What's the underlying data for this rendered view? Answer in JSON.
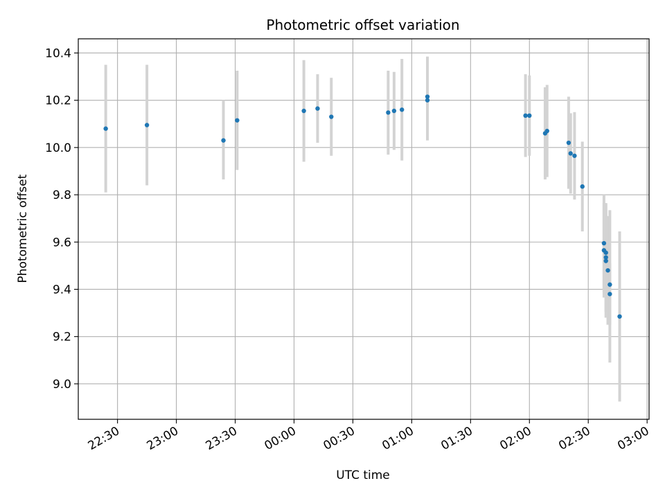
{
  "chart_data": {
    "type": "scatter",
    "title": "Photometric offset variation",
    "xlabel": "UTC time",
    "ylabel": "Photometric offset",
    "x_axis_kind": "time",
    "x_range": [
      "22:10",
      "03:01"
    ],
    "ylim": [
      8.85,
      10.46
    ],
    "x_ticks": [
      "22:30",
      "23:00",
      "23:30",
      "00:00",
      "00:30",
      "01:00",
      "01:30",
      "02:00",
      "02:30",
      "03:00"
    ],
    "y_ticks": [
      "9.0",
      "9.2",
      "9.4",
      "9.6",
      "9.8",
      "10.0",
      "10.2",
      "10.4"
    ],
    "grid": true,
    "colors": {
      "points": "#1f77b4",
      "error_bars": "#d3d3d3",
      "grid": "#b0b0b0"
    },
    "points": [
      {
        "x": "22:24",
        "y": 10.08,
        "err_low": 9.81,
        "err_high": 10.35
      },
      {
        "x": "22:45",
        "y": 10.095,
        "err_low": 9.84,
        "err_high": 10.35
      },
      {
        "x": "23:24",
        "y": 10.03,
        "err_low": 9.865,
        "err_high": 10.2
      },
      {
        "x": "23:31",
        "y": 10.115,
        "err_low": 9.905,
        "err_high": 10.325
      },
      {
        "x": "00:05",
        "y": 10.155,
        "err_low": 9.94,
        "err_high": 10.37
      },
      {
        "x": "00:12",
        "y": 10.165,
        "err_low": 10.02,
        "err_high": 10.31
      },
      {
        "x": "00:19",
        "y": 10.13,
        "err_low": 9.965,
        "err_high": 10.295
      },
      {
        "x": "00:48",
        "y": 10.148,
        "err_low": 9.97,
        "err_high": 10.325
      },
      {
        "x": "00:51",
        "y": 10.155,
        "err_low": 9.99,
        "err_high": 10.32
      },
      {
        "x": "00:55",
        "y": 10.16,
        "err_low": 9.945,
        "err_high": 10.375
      },
      {
        "x": "01:08",
        "y": 10.2,
        "err_low": 10.03,
        "err_high": 10.385
      },
      {
        "x": "01:08",
        "y": 10.215,
        "err_low": 10.055,
        "err_high": 10.375
      },
      {
        "x": "01:58",
        "y": 10.135,
        "err_low": 9.96,
        "err_high": 10.31
      },
      {
        "x": "02:00",
        "y": 10.135,
        "err_low": 9.965,
        "err_high": 10.305
      },
      {
        "x": "02:08",
        "y": 10.06,
        "err_low": 9.865,
        "err_high": 10.255
      },
      {
        "x": "02:09",
        "y": 10.07,
        "err_low": 9.875,
        "err_high": 10.265
      },
      {
        "x": "02:20",
        "y": 10.02,
        "err_low": 9.825,
        "err_high": 10.215
      },
      {
        "x": "02:21",
        "y": 9.975,
        "err_low": 9.805,
        "err_high": 10.145
      },
      {
        "x": "02:23",
        "y": 9.965,
        "err_low": 9.78,
        "err_high": 10.15
      },
      {
        "x": "02:27",
        "y": 9.835,
        "err_low": 9.645,
        "err_high": 10.025
      },
      {
        "x": "02:38",
        "y": 9.595,
        "err_low": 9.39,
        "err_high": 9.8
      },
      {
        "x": "02:38",
        "y": 9.565,
        "err_low": 9.365,
        "err_high": 9.765
      },
      {
        "x": "02:39",
        "y": 9.555,
        "err_low": 9.375,
        "err_high": 9.735
      },
      {
        "x": "02:39",
        "y": 9.52,
        "err_low": 9.28,
        "err_high": 9.76
      },
      {
        "x": "02:39",
        "y": 9.535,
        "err_low": 9.305,
        "err_high": 9.765
      },
      {
        "x": "02:40",
        "y": 9.48,
        "err_low": 9.25,
        "err_high": 9.71
      },
      {
        "x": "02:41",
        "y": 9.38,
        "err_low": 9.25,
        "err_high": 9.51
      },
      {
        "x": "02:41",
        "y": 9.42,
        "err_low": 9.09,
        "err_high": 9.735
      },
      {
        "x": "02:46",
        "y": 9.285,
        "err_low": 8.925,
        "err_high": 9.645
      }
    ]
  }
}
